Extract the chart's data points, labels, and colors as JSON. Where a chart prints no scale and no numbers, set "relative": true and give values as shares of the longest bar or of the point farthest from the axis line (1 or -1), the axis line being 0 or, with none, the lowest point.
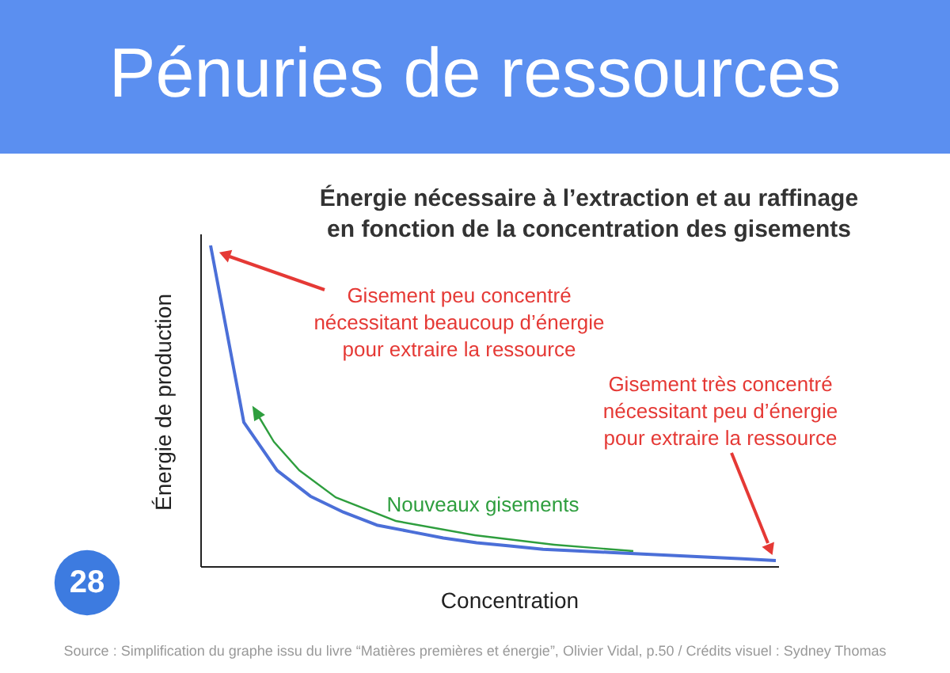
{
  "chart_data": {
    "type": "line",
    "relative": true,
    "title": "Pénuries de ressources",
    "subtitle": "Énergie nécessaire à l’extraction et au raffinage\nen fonction de la concentration des gisements",
    "xlabel": "Concentration",
    "ylabel": "Énergie de production",
    "categories": [
      null,
      null,
      null,
      null,
      null,
      null,
      null,
      null,
      null,
      null,
      null,
      null,
      null,
      null,
      null,
      null,
      null,
      null
    ],
    "series": [
      {
        "color": "#4b6fd8",
        "values": [
          1,
          0.45,
          0.3,
          0.22,
          0.17,
          0.13,
          0.11,
          0.09,
          0.075,
          0.065,
          0.055,
          0.05,
          0.045,
          0.04,
          0.035,
          0.03,
          0.025,
          0.02
        ]
      }
    ],
    "annotations": [
      "Gisement peu concentré\nnécessitant beaucoup d’énergie\npour extraire la ressource",
      "Gisement très concentré\nnécessitant peu d’énergie\npour extraire la ressource",
      "Nouveaux gisements",
      "28",
      "Source : Simplification du graphe issu du livre “Matières premières et énergie”, Olivier Vidal, p.50 / Crédits visuel : Sydney Thomas"
    ]
  }
}
